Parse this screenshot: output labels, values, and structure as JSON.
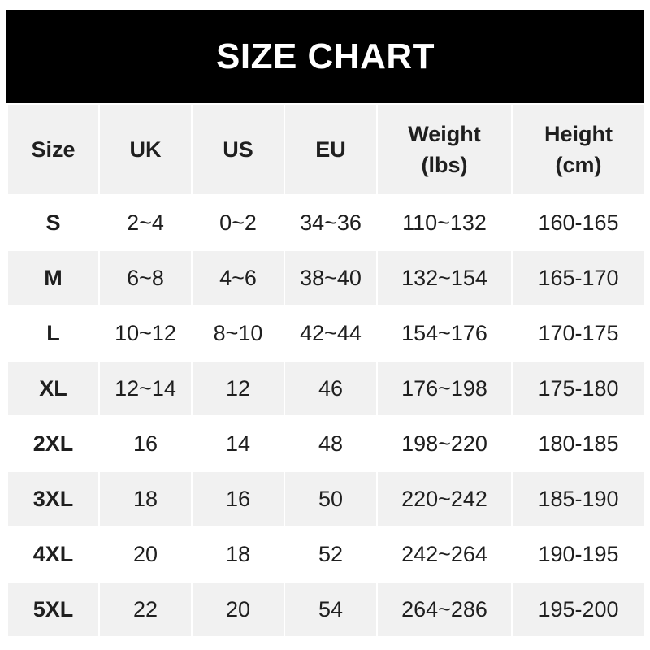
{
  "title": "SIZE CHART",
  "headers": [
    {
      "line1": "Size",
      "line2": ""
    },
    {
      "line1": "UK",
      "line2": ""
    },
    {
      "line1": "US",
      "line2": ""
    },
    {
      "line1": "EU",
      "line2": ""
    },
    {
      "line1": "Weight",
      "line2": "(lbs)"
    },
    {
      "line1": "Height",
      "line2": "(cm)"
    }
  ],
  "rows": [
    [
      "S",
      "2~4",
      "0~2",
      "34~36",
      "110~132",
      "160-165"
    ],
    [
      "M",
      "6~8",
      "4~6",
      "38~40",
      "132~154",
      "165-170"
    ],
    [
      "L",
      "10~12",
      "8~10",
      "42~44",
      "154~176",
      "170-175"
    ],
    [
      "XL",
      "12~14",
      "12",
      "46",
      "176~198",
      "175-180"
    ],
    [
      "2XL",
      "16",
      "14",
      "48",
      "198~220",
      "180-185"
    ],
    [
      "3XL",
      "18",
      "16",
      "50",
      "220~242",
      "185-190"
    ],
    [
      "4XL",
      "20",
      "18",
      "52",
      "242~264",
      "190-195"
    ],
    [
      "5XL",
      "22",
      "20",
      "54",
      "264~286",
      "195-200"
    ]
  ],
  "colors": {
    "title_bg": "#000000",
    "stripe": "#f1f1f1",
    "text": "#1f1f1f"
  }
}
